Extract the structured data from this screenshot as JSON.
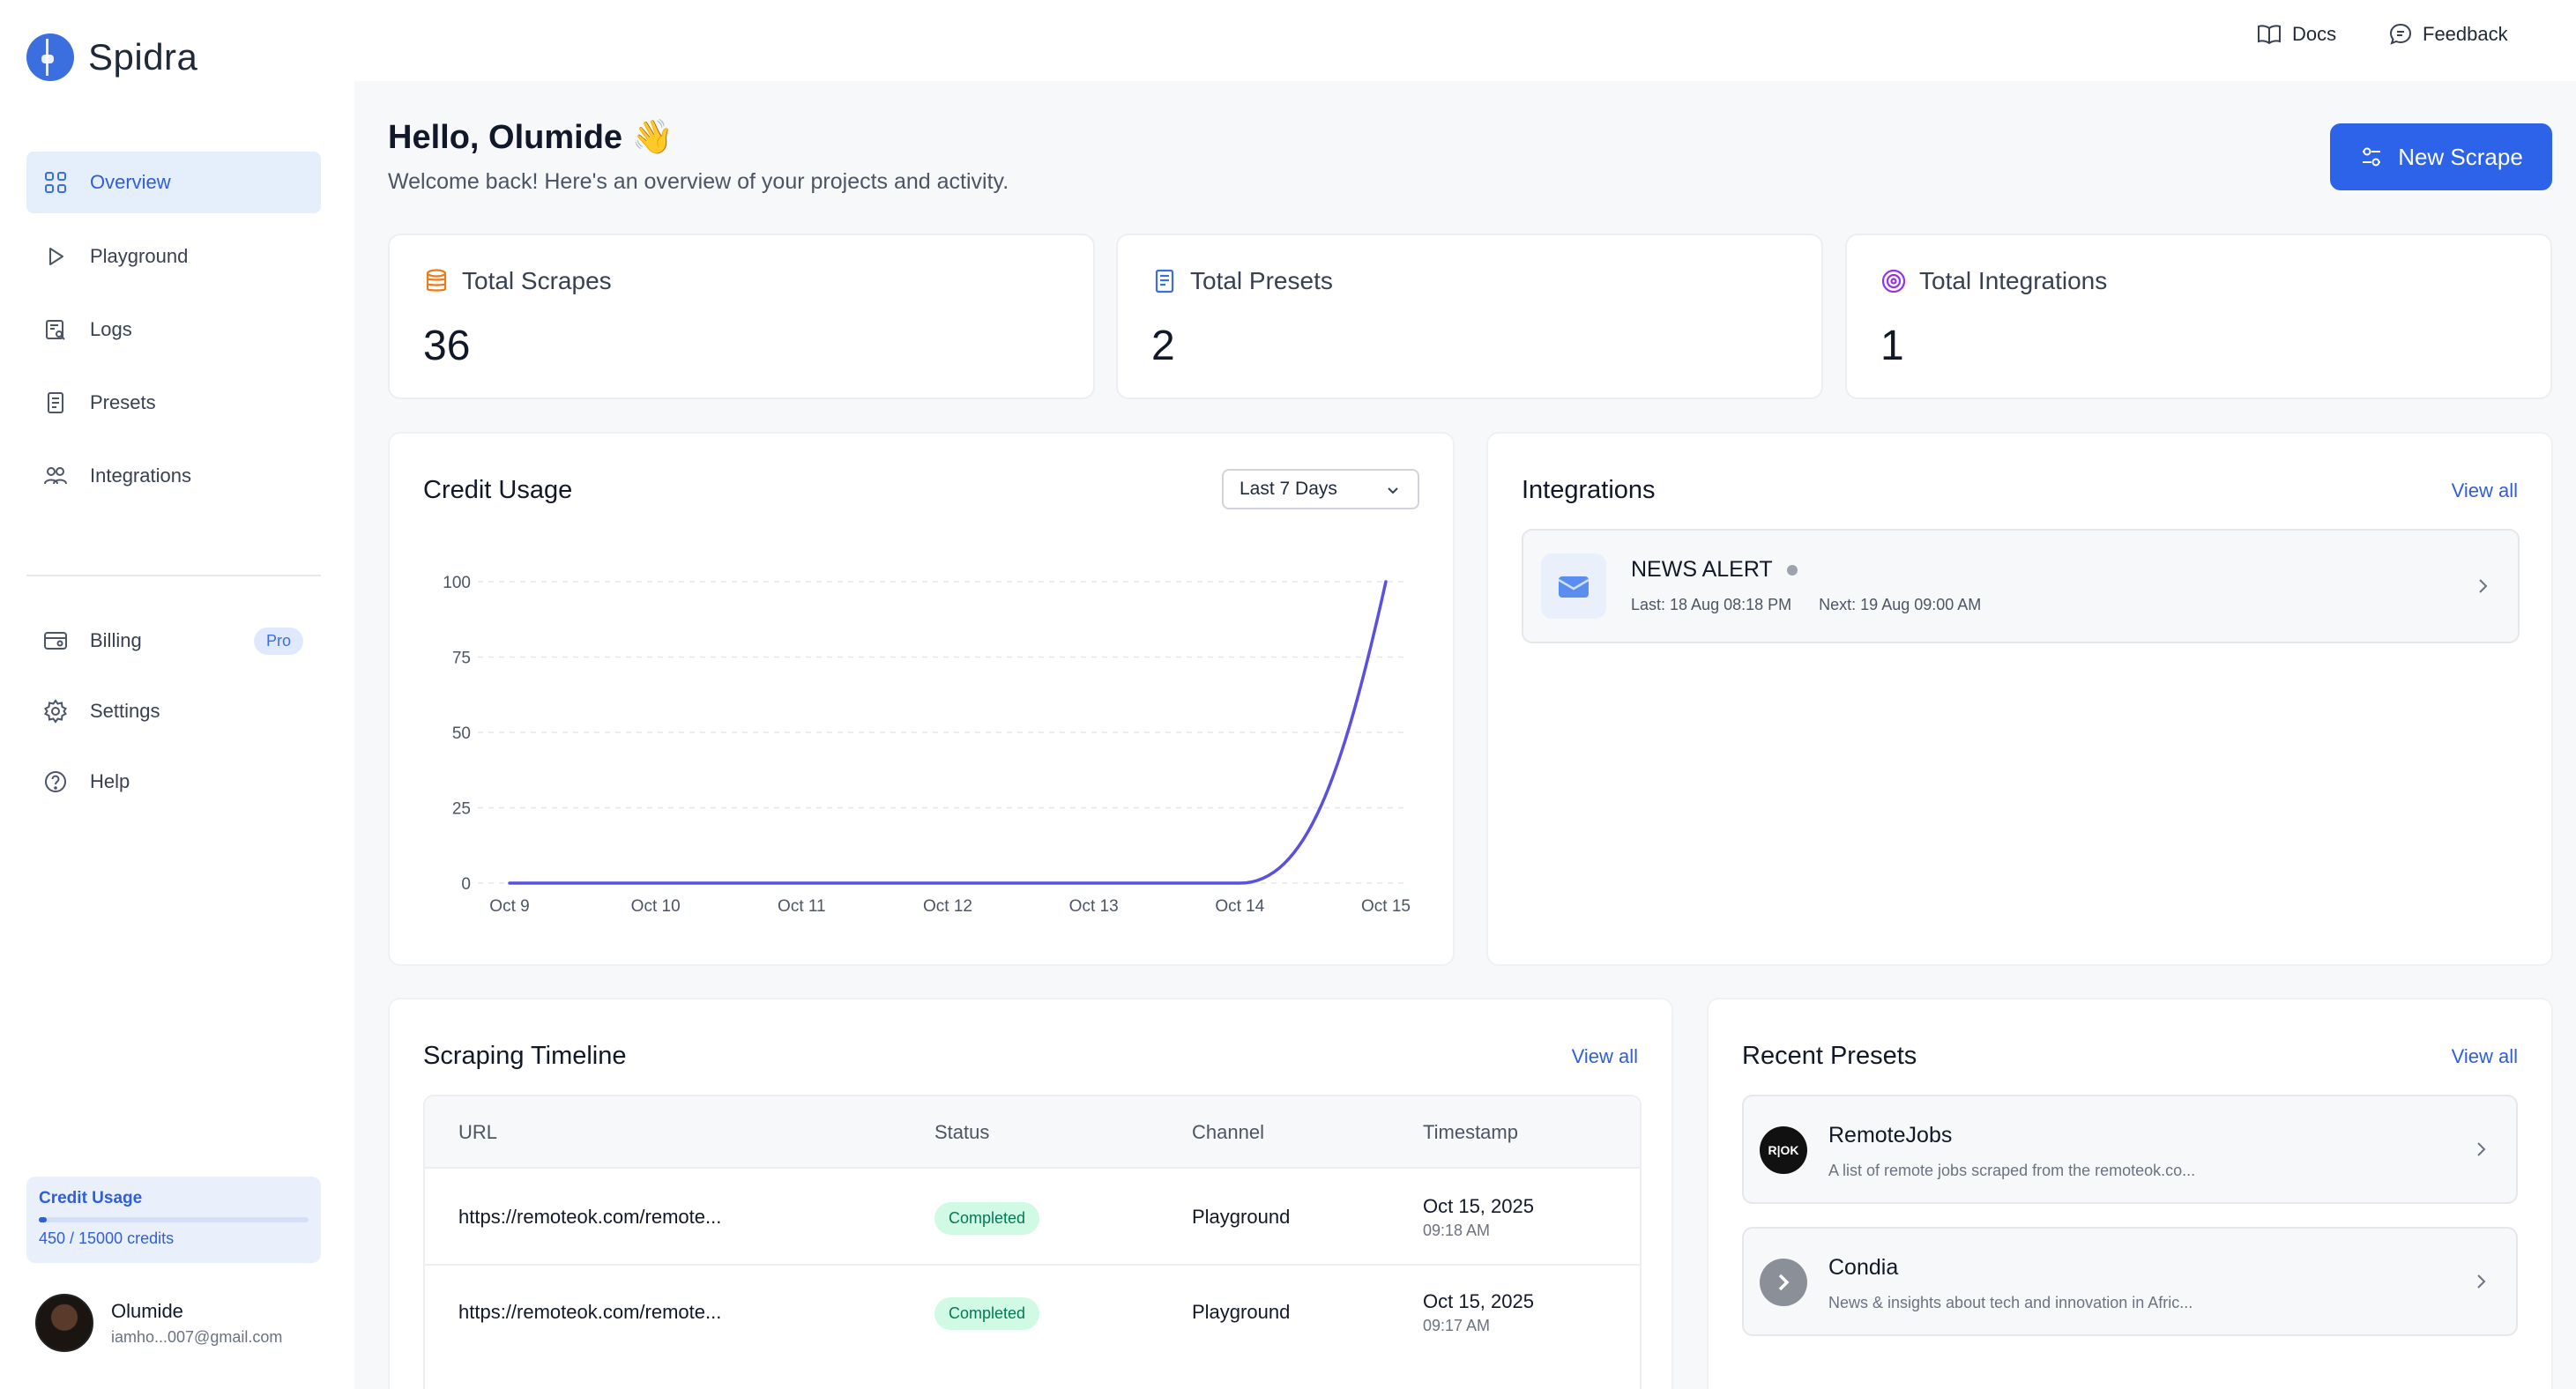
{
  "app": {
    "name": "Spidra"
  },
  "sidebar": {
    "nav": [
      {
        "label": "Overview",
        "icon": "grid-icon",
        "active": true
      },
      {
        "label": "Playground",
        "icon": "play-icon"
      },
      {
        "label": "Logs",
        "icon": "logs-icon"
      },
      {
        "label": "Presets",
        "icon": "document-icon"
      },
      {
        "label": "Integrations",
        "icon": "users-icon"
      }
    ],
    "secondary": [
      {
        "label": "Billing",
        "icon": "billing-icon",
        "badge": "Pro"
      },
      {
        "label": "Settings",
        "icon": "gear-icon"
      },
      {
        "label": "Help",
        "icon": "help-icon"
      }
    ],
    "credit": {
      "title": "Credit Usage",
      "text": "450 / 15000 credits",
      "fraction": 0.03
    },
    "user": {
      "name": "Olumide",
      "email": "iamho...007@gmail.com"
    }
  },
  "topbar": {
    "docs": "Docs",
    "feedback": "Feedback"
  },
  "header": {
    "greeting": "Hello, Olumide 👋",
    "subtitle": "Welcome back! Here's an overview of your projects and activity.",
    "new_scrape": "New Scrape"
  },
  "stats": [
    {
      "label": "Total Scrapes",
      "value": "36",
      "icon": "database-icon",
      "color": "#ea7a1c"
    },
    {
      "label": "Total Presets",
      "value": "2",
      "icon": "document-icon",
      "color": "#3b6fe0"
    },
    {
      "label": "Total Integrations",
      "value": "1",
      "icon": "target-icon",
      "color": "#9333ea"
    }
  ],
  "credit_usage": {
    "title": "Credit Usage",
    "range": "Last 7 Days"
  },
  "chart_data": {
    "type": "line",
    "title": "Credit Usage",
    "categories": [
      "Oct 9",
      "Oct 10",
      "Oct 11",
      "Oct 12",
      "Oct 13",
      "Oct 14",
      "Oct 15"
    ],
    "series": [
      {
        "values": [
          0,
          0,
          0,
          0,
          0,
          0,
          100
        ]
      }
    ],
    "yticks": [
      0,
      25,
      50,
      75,
      100
    ],
    "ylim": [
      0,
      100
    ],
    "grid": true,
    "color": "#5b4fe0"
  },
  "integrations": {
    "title": "Integrations",
    "view_all": "View all",
    "items": [
      {
        "name": "NEWS ALERT",
        "last": "Last: 18 Aug 08:18 PM",
        "next": "Next: 19 Aug 09:00 AM",
        "icon": "mail-icon"
      }
    ]
  },
  "timeline": {
    "title": "Scraping Timeline",
    "view_all": "View all",
    "columns": [
      "URL",
      "Status",
      "Channel",
      "Timestamp"
    ],
    "rows": [
      {
        "url": "https://remoteok.com/remote...",
        "status": "Completed",
        "channel": "Playground",
        "date": "Oct 15, 2025",
        "time": "09:18 AM"
      },
      {
        "url": "https://remoteok.com/remote...",
        "status": "Completed",
        "channel": "Playground",
        "date": "Oct 15, 2025",
        "time": "09:17 AM"
      }
    ]
  },
  "presets": {
    "title": "Recent Presets",
    "view_all": "View all",
    "items": [
      {
        "name": "RemoteJobs",
        "desc": "A list of remote jobs scraped from the remoteok.co...",
        "logo": "R|OK"
      },
      {
        "name": "Condia",
        "desc": "News & insights about tech and innovation in Afric..."
      }
    ]
  }
}
